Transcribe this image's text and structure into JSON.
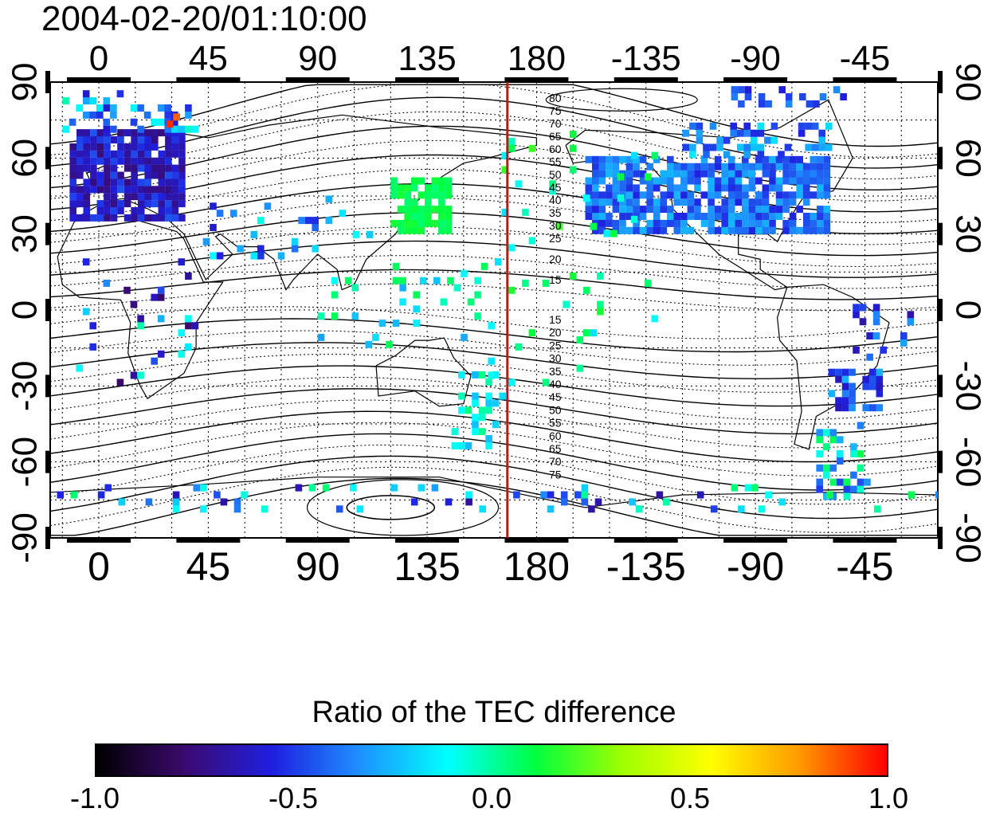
{
  "title": "2004-02-20/01:10:00",
  "map": {
    "x_axis_top_ticks": [
      "0",
      "45",
      "90",
      "135",
      "180",
      "-135",
      "-90",
      "-45"
    ],
    "x_axis_bottom_ticks": [
      "0",
      "45",
      "90",
      "135",
      "180",
      "-135",
      "-90",
      "-45"
    ],
    "y_axis_left_ticks": [
      "90",
      "60",
      "30",
      "0",
      "-30",
      "-60",
      "-90"
    ],
    "y_axis_right_ticks": [
      "90",
      "60",
      "30",
      "0",
      "-30",
      "-60",
      "-90"
    ],
    "lon_range": [
      -20,
      345
    ],
    "lat_range": [
      -90,
      90
    ],
    "grid": true,
    "terminator_longitude": 168,
    "terminator_color": "#d01010",
    "contour_labels_north": [
      "80",
      "75",
      "70",
      "65",
      "60",
      "55",
      "50",
      "45",
      "40",
      "35",
      "30",
      "25",
      "20",
      "15"
    ],
    "contour_labels_south": [
      "15",
      "20",
      "25",
      "30",
      "35",
      "40",
      "45",
      "50",
      "55",
      "60",
      "65",
      "70",
      "75"
    ]
  },
  "colorbar": {
    "title": "Ratio of the TEC difference",
    "range": [
      -1.0,
      1.0
    ],
    "tick_labels": [
      "-1.0",
      "-0.5",
      "0.0",
      "0.5",
      "1.0"
    ],
    "tick_values": [
      -1.0,
      -0.5,
      0.0,
      0.5,
      1.0
    ],
    "colormap": [
      "#000000",
      "#3a0a6e",
      "#1f1fe0",
      "#1e90ff",
      "#00ffff",
      "#00ff40",
      "#a0ff00",
      "#ffff00",
      "#ff9a00",
      "#ff0000"
    ]
  }
}
